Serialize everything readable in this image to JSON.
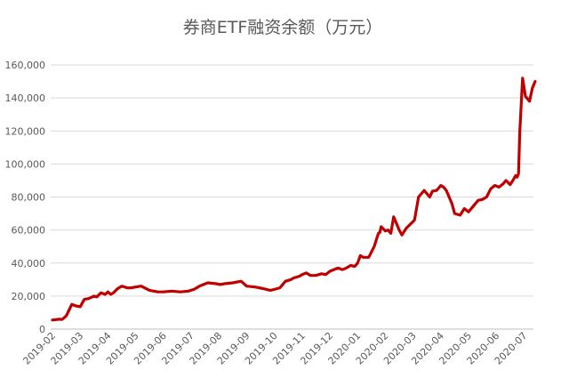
{
  "chart_data": {
    "type": "line",
    "title": "券商ETF融资余额（万元）",
    "xlabel": "",
    "ylabel": "",
    "ylim": [
      0,
      160000
    ],
    "yticks": [
      "0",
      "20,000",
      "40,000",
      "60,000",
      "80,000",
      "100,000",
      "120,000",
      "140,000",
      "160,000"
    ],
    "xticks": [
      "2019-02",
      "2019-03",
      "2019-04",
      "2019-05",
      "2019-06",
      "2019-07",
      "2019-08",
      "2019-09",
      "2019-10",
      "2019-11",
      "2019-12",
      "2020-01",
      "2020-02",
      "2020-03",
      "2020-04",
      "2020-05",
      "2020-06",
      "2020-07"
    ],
    "grid": true,
    "line_color": "#c00000",
    "series": [
      {
        "name": "",
        "x": [
          0.0,
          0.25,
          0.35,
          0.5,
          0.7,
          0.85,
          1.0,
          1.15,
          1.3,
          1.5,
          1.6,
          1.75,
          1.9,
          2.0,
          2.1,
          2.2,
          2.35,
          2.5,
          2.7,
          2.85,
          3.0,
          3.2,
          3.5,
          3.8,
          4.0,
          4.3,
          4.6,
          4.9,
          5.1,
          5.3,
          5.6,
          5.9,
          6.05,
          6.2,
          6.5,
          6.8,
          7.0,
          7.3,
          7.6,
          7.85,
          8.0,
          8.2,
          8.4,
          8.6,
          8.7,
          8.9,
          9.0,
          9.15,
          9.3,
          9.5,
          9.7,
          9.85,
          10.0,
          10.3,
          10.45,
          10.6,
          10.75,
          10.9,
          11.0,
          11.1,
          11.2,
          11.4,
          11.6,
          11.75,
          11.8,
          11.85,
          12.0,
          12.1,
          12.2,
          12.3,
          12.5,
          12.6,
          12.75,
          12.9,
          13.05,
          13.2,
          13.4,
          13.6,
          13.7,
          13.85,
          14.0,
          14.1,
          14.2,
          14.4,
          14.5,
          14.7,
          14.85,
          15.0,
          15.2,
          15.35,
          15.5,
          15.65,
          15.8,
          15.95,
          16.1,
          16.25,
          16.35,
          16.5,
          16.6,
          16.7,
          16.75,
          16.8,
          16.85,
          16.95,
          17.05,
          17.2,
          17.3,
          17.4
        ],
        "values": [
          5500,
          6000,
          5800,
          8000,
          15000,
          14000,
          13500,
          18000,
          18500,
          20000,
          19500,
          22000,
          21000,
          22500,
          21000,
          22000,
          24500,
          26000,
          25000,
          25000,
          25500,
          26000,
          23500,
          22500,
          22500,
          23000,
          22500,
          23000,
          24000,
          26000,
          28000,
          27500,
          27000,
          27500,
          28000,
          29000,
          26000,
          25500,
          24500,
          23500,
          24000,
          25000,
          29000,
          30000,
          31000,
          32000,
          33000,
          34000,
          32500,
          32500,
          33500,
          33000,
          35000,
          37000,
          36000,
          37000,
          38500,
          38000,
          40000,
          44500,
          43500,
          43500,
          50000,
          58000,
          58500,
          62000,
          59500,
          60000,
          58000,
          68000,
          60000,
          57000,
          61000,
          63500,
          66000,
          80000,
          84000,
          80000,
          83500,
          84000,
          87000,
          86000,
          84000,
          76000,
          70000,
          69000,
          73000,
          71000,
          75000,
          78000,
          78500,
          80000,
          85000,
          87000,
          86000,
          88000,
          90000,
          87500,
          90000,
          93000,
          92000,
          94000,
          120000,
          152000,
          141000,
          138000,
          146000,
          150000
        ]
      }
    ]
  }
}
